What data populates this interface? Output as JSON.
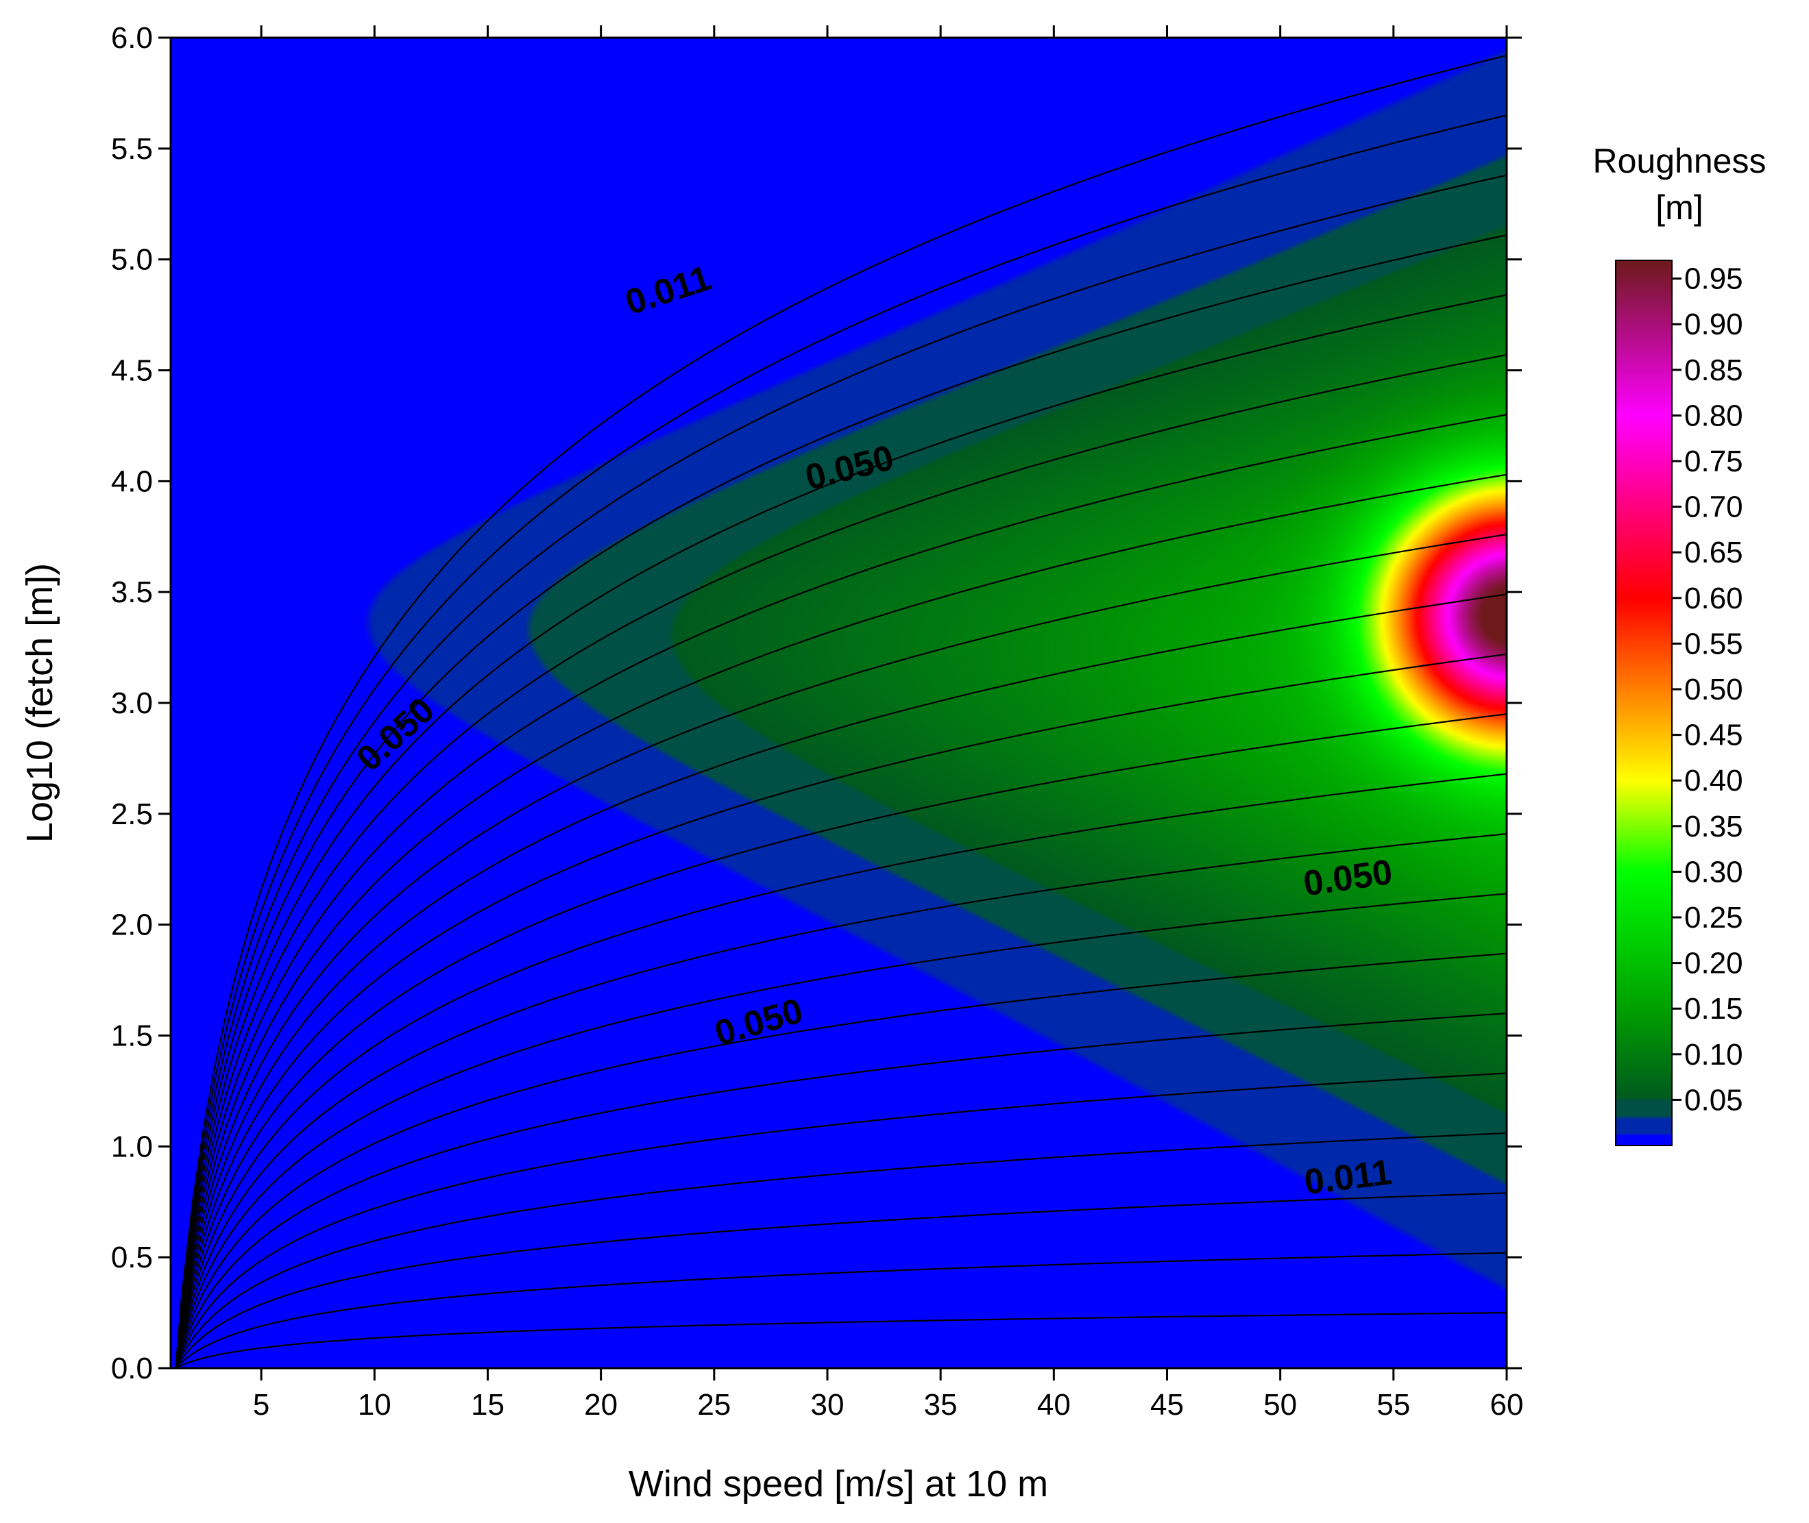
{
  "chart_data": {
    "type": "heatmap",
    "xlabel": "Wind speed [m/s] at 10 m",
    "ylabel": "Log10 (fetch [m])",
    "xlim": [
      1,
      60
    ],
    "ylim": [
      0.0,
      6.0
    ],
    "x_ticks": [
      "5",
      "10",
      "15",
      "20",
      "25",
      "30",
      "35",
      "40",
      "45",
      "50",
      "55",
      "60"
    ],
    "y_ticks": [
      "0.0",
      "0.5",
      "1.0",
      "1.5",
      "2.0",
      "2.5",
      "3.0",
      "3.5",
      "4.0",
      "4.5",
      "5.0",
      "5.5",
      "6.0"
    ],
    "colorbar": {
      "title_line1": "Roughness",
      "title_line2": "[m]",
      "ticks": [
        "0.95",
        "0.90",
        "0.85",
        "0.80",
        "0.75",
        "0.70",
        "0.65",
        "0.60",
        "0.55",
        "0.50",
        "0.45",
        "0.40",
        "0.35",
        "0.30",
        "0.25",
        "0.20",
        "0.15",
        "0.10",
        "0.05"
      ],
      "range": [
        0.0,
        0.97
      ],
      "colors": [
        "#0000ff",
        "#005040",
        "#008a00",
        "#00ff00",
        "#ffff00",
        "#ff0000",
        "#ff00ff",
        "#6b1a1a"
      ]
    },
    "contour_labels": [
      {
        "text": "0.011",
        "x": 23,
        "y": 4.85,
        "angle": -18
      },
      {
        "text": "0.050",
        "x": 31,
        "y": 4.05,
        "angle": -14
      },
      {
        "text": "0.050",
        "x": 11,
        "y": 2.85,
        "angle": -42
      },
      {
        "text": "0.050",
        "x": 53,
        "y": 2.2,
        "angle": -8
      },
      {
        "text": "0.050",
        "x": 27,
        "y": 1.55,
        "angle": -16
      },
      {
        "text": "0.011",
        "x": 53,
        "y": 0.85,
        "angle": -7
      }
    ],
    "peak": {
      "x": 60,
      "y": 3.4,
      "value": 0.97
    }
  }
}
